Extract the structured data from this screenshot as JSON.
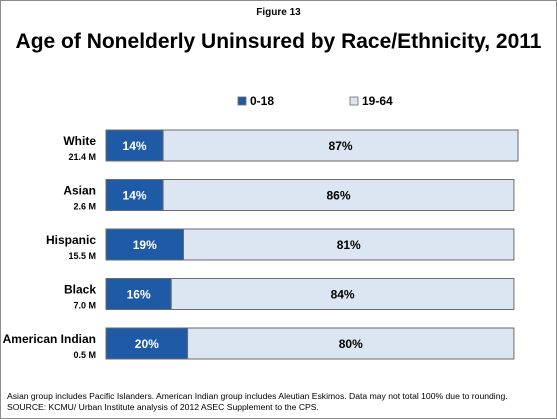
{
  "header": {
    "figure_label": "Figure 13",
    "title": "Age of Nonelderly Uninsured by Race/Ethnicity, 2011"
  },
  "footnote": {
    "line1": "Asian group includes Pacific Islanders. American Indian group includes Aleutian Eskimos. Data may not total 100% due to rounding.",
    "line2": "SOURCE: KCMU/ Urban Institute analysis of 2012 ASEC Supplement to the CPS."
  },
  "colors": {
    "series_0_18": "#1f5aa6",
    "series_19_64": "#dce6f2",
    "bar_border": "#6b6b6b"
  },
  "chart_data": {
    "type": "bar",
    "orientation": "horizontal",
    "stacked": true,
    "categories": [
      "White",
      "Asian",
      "Hispanic",
      "Black",
      "American Indian"
    ],
    "category_sublabels": [
      "21.4 M",
      "2.6 M",
      "15.5 M",
      "7.0 M",
      "0.5 M"
    ],
    "series": [
      {
        "name": "0-18",
        "values": [
          14,
          14,
          19,
          16,
          20
        ],
        "labels": [
          "14%",
          "14%",
          "19%",
          "16%",
          "20%"
        ]
      },
      {
        "name": "19-64",
        "values": [
          87,
          86,
          81,
          84,
          80
        ],
        "labels": [
          "87%",
          "86%",
          "81%",
          "84%",
          "80%"
        ]
      }
    ],
    "xlim": [
      0,
      101
    ],
    "legend_position": "top",
    "grid": false
  }
}
